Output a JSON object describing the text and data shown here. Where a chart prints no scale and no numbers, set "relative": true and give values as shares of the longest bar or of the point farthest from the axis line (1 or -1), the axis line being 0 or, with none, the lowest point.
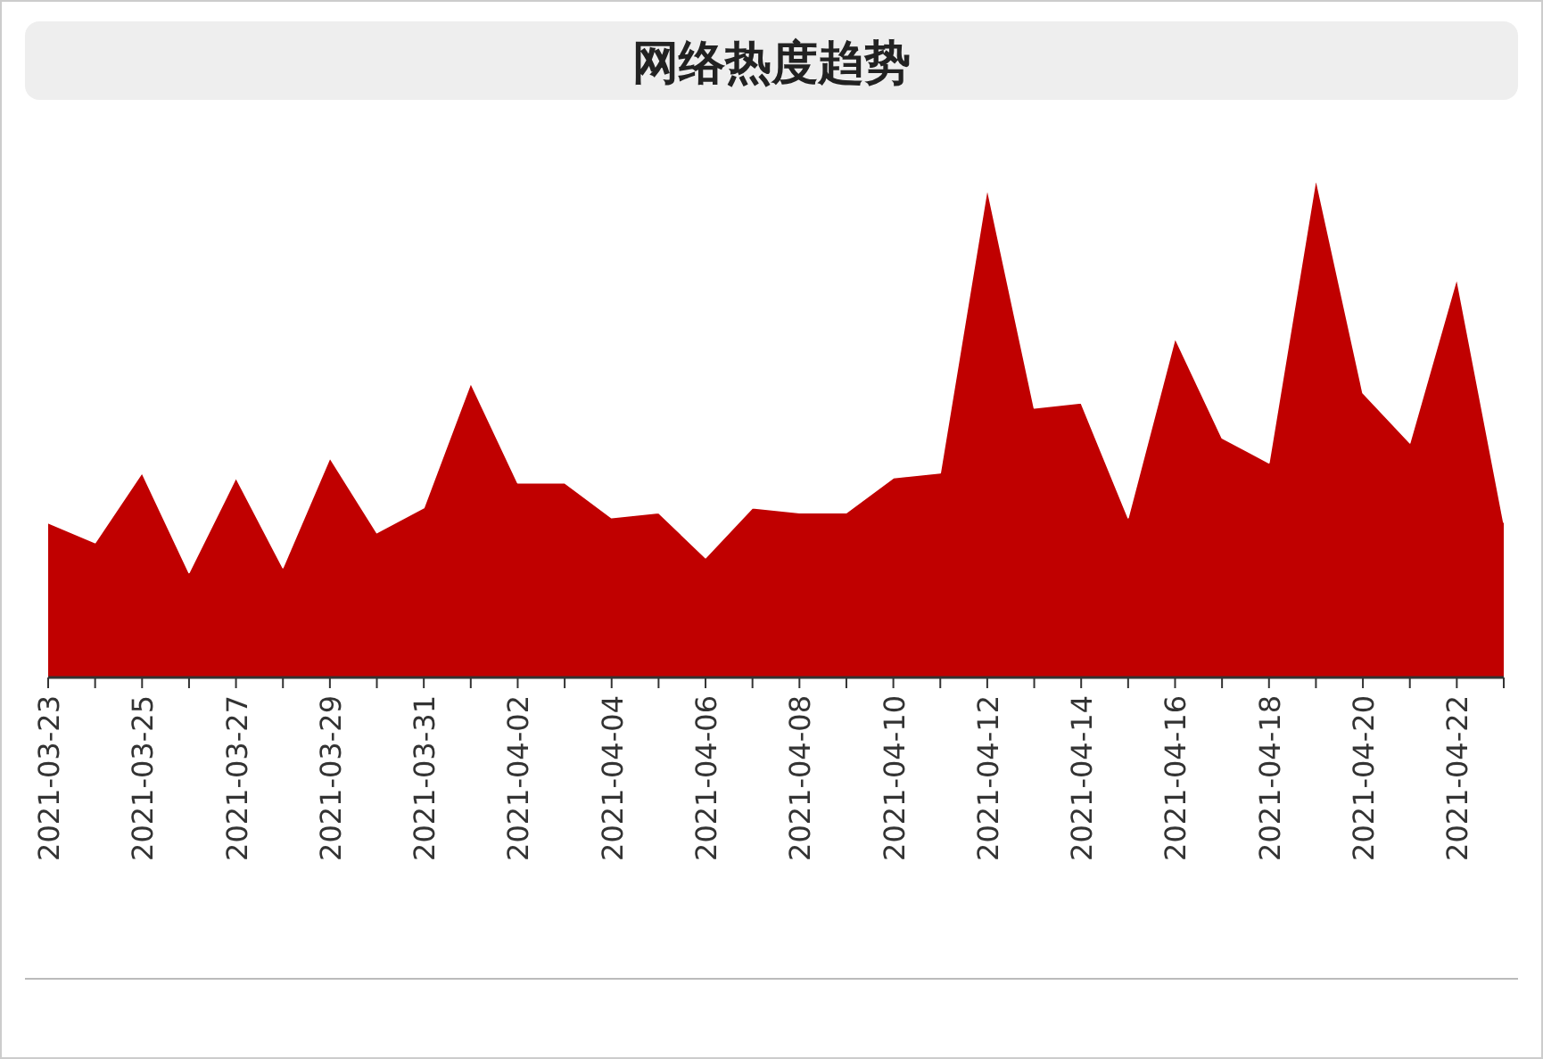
{
  "chart_data": {
    "type": "area",
    "title": "网络热度趋势",
    "relative": true,
    "categories": [
      "2021-03-23",
      null,
      "2021-03-25",
      null,
      "2021-03-27",
      null,
      "2021-03-29",
      null,
      "2021-03-31",
      null,
      "2021-04-02",
      null,
      "2021-04-04",
      null,
      "2021-04-06",
      null,
      "2021-04-08",
      null,
      "2021-04-10",
      null,
      "2021-04-12",
      null,
      "2021-04-14",
      null,
      "2021-04-16",
      null,
      "2021-04-18",
      null,
      "2021-04-20",
      null,
      "2021-04-22",
      null
    ],
    "series": [
      {
        "color": "#c00000",
        "values": [
          0.31,
          0.27,
          0.41,
          0.21,
          0.4,
          0.22,
          0.44,
          0.29,
          0.34,
          0.59,
          0.39,
          0.39,
          0.32,
          0.33,
          0.24,
          0.34,
          0.33,
          0.33,
          0.4,
          0.41,
          0.98,
          0.54,
          0.55,
          0.32,
          0.68,
          0.48,
          0.43,
          1,
          0.57,
          0.47,
          0.8,
          0.31
        ]
      }
    ],
    "line_style": "solid"
  }
}
